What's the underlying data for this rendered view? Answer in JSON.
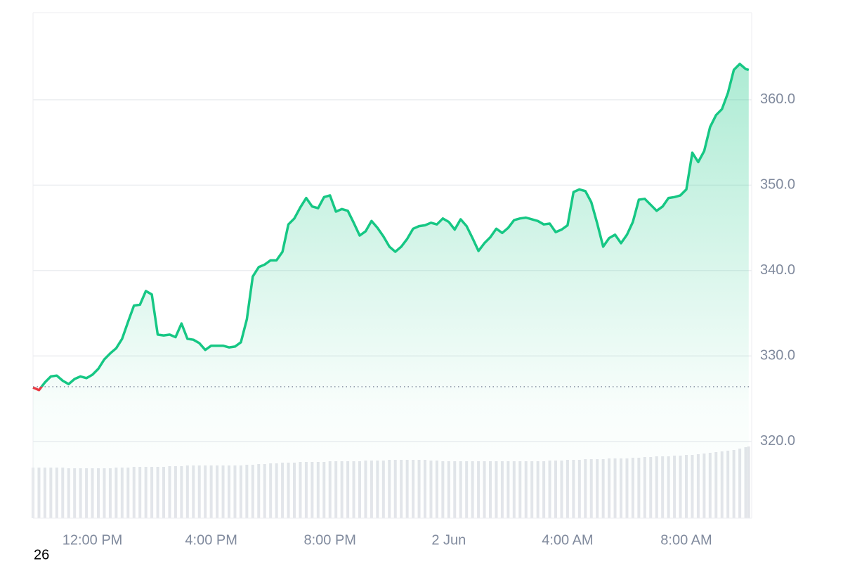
{
  "chart_data": {
    "type": "area",
    "x": [
      10,
      10.2,
      10.4,
      10.6,
      10.8,
      11,
      11.2,
      11.4,
      11.6,
      11.8,
      12,
      12.2,
      12.4,
      12.6,
      12.8,
      13,
      13.2,
      13.4,
      13.6,
      13.8,
      14,
      14.2,
      14.4,
      14.6,
      14.8,
      15,
      15.2,
      15.4,
      15.6,
      15.8,
      16,
      16.2,
      16.4,
      16.6,
      16.8,
      17,
      17.2,
      17.4,
      17.6,
      17.8,
      18,
      18.2,
      18.4,
      18.6,
      18.8,
      19,
      19.2,
      19.4,
      19.6,
      19.8,
      20,
      20.2,
      20.4,
      20.6,
      20.8,
      21,
      21.2,
      21.4,
      21.6,
      21.8,
      22,
      22.2,
      22.4,
      22.6,
      22.8,
      23,
      23.2,
      23.4,
      23.6,
      23.8,
      24,
      24.2,
      24.4,
      24.6,
      24.8,
      25,
      25.2,
      25.4,
      25.6,
      25.8,
      26,
      26.2,
      26.4,
      26.6,
      26.8,
      27,
      27.2,
      27.4,
      27.6,
      27.8,
      28,
      28.2,
      28.4,
      28.6,
      28.8,
      29,
      29.2,
      29.4,
      29.6,
      29.8,
      30,
      30.2,
      30.4,
      30.6,
      30.8,
      31,
      31.2,
      31.4,
      31.6,
      31.8,
      32,
      32.2,
      32.4,
      32.6,
      32.8,
      33,
      33.2,
      33.4,
      33.6,
      33.8,
      34,
      34.1
    ],
    "series": [
      {
        "values": [
          326.3,
          326.0,
          326.9,
          327.6,
          327.7,
          327.1,
          326.7,
          327.3,
          327.6,
          327.4,
          327.8,
          328.5,
          329.6,
          330.3,
          330.9,
          332.0,
          334.0,
          335.9,
          336.0,
          337.6,
          337.2,
          332.5,
          332.4,
          332.5,
          332.2,
          333.8,
          332.0,
          331.9,
          331.5,
          330.7,
          331.2,
          331.2,
          331.2,
          331.0,
          331.1,
          331.6,
          334.3,
          339.3,
          340.4,
          340.7,
          341.2,
          341.2,
          342.2,
          345.4,
          346.1,
          347.4,
          348.5,
          347.5,
          347.3,
          348.6,
          348.8,
          346.9,
          347.2,
          347.0,
          345.6,
          344.1,
          344.6,
          345.8,
          345.0,
          344.0,
          342.8,
          342.2,
          342.8,
          343.7,
          344.9,
          345.2,
          345.3,
          345.6,
          345.4,
          346.1,
          345.7,
          344.8,
          346.0,
          345.2,
          343.8,
          342.3,
          343.2,
          343.9,
          344.9,
          344.4,
          345.0,
          345.9,
          346.1,
          346.2,
          346.0,
          345.8,
          345.4,
          345.5,
          344.5,
          344.8,
          345.3,
          349.2,
          349.5,
          349.3,
          348.0,
          345.5,
          342.8,
          343.8,
          344.2,
          343.2,
          344.2,
          345.7,
          348.3,
          348.4,
          347.7,
          347.0,
          347.5,
          348.5,
          348.6,
          348.8,
          349.5,
          353.8,
          352.7,
          354.0,
          356.8,
          358.2,
          358.9,
          360.8,
          363.5,
          364.2,
          363.6,
          363.5
        ],
        "color": "#16c784",
        "below_color": "#ea3943"
      }
    ],
    "baseline": 326.4,
    "volume": {
      "color": "#e3e5ea",
      "values": [
        72,
        72,
        72,
        72,
        72,
        72,
        71,
        71,
        71,
        71,
        71,
        71,
        71,
        71,
        72,
        72,
        72,
        73,
        73,
        73,
        73,
        73,
        73,
        74,
        74,
        74,
        75,
        75,
        75,
        75,
        75,
        75,
        75,
        75,
        75,
        75,
        76,
        76,
        77,
        77,
        78,
        78,
        79,
        79,
        79,
        80,
        80,
        80,
        80,
        80,
        81,
        81,
        81,
        81,
        81,
        81,
        82,
        82,
        82,
        82,
        83,
        83,
        83,
        83,
        83,
        83,
        83,
        82,
        82,
        81,
        81,
        81,
        81,
        81,
        81,
        81,
        81,
        81,
        81,
        81,
        81,
        81,
        81,
        81,
        81,
        81,
        81,
        82,
        82,
        82,
        83,
        83,
        83,
        84,
        84,
        84,
        84,
        85,
        85,
        85,
        85,
        86,
        86,
        87,
        87,
        88,
        88,
        88,
        89,
        89,
        90,
        90,
        91,
        92,
        93,
        94,
        95,
        96,
        97,
        99,
        101,
        102
      ]
    },
    "xlim": [
      10,
      34.2
    ],
    "xticks": [
      {
        "value": 12,
        "label": "12:00 PM"
      },
      {
        "value": 16,
        "label": "4:00 PM"
      },
      {
        "value": 20,
        "label": "8:00 PM"
      },
      {
        "value": 24,
        "label": "2 Jun"
      },
      {
        "value": 28,
        "label": "4:00 AM"
      },
      {
        "value": 32,
        "label": "8:00 AM"
      }
    ],
    "ylim": [
      311,
      370.2
    ],
    "yticks": [
      {
        "value": 320,
        "label": "320.0"
      },
      {
        "value": 330,
        "label": "330.0"
      },
      {
        "value": 340,
        "label": "340.0"
      },
      {
        "value": 350,
        "label": "350.0"
      },
      {
        "value": 360,
        "label": "360.0"
      }
    ],
    "grid": true,
    "annotations": [
      "26"
    ]
  }
}
